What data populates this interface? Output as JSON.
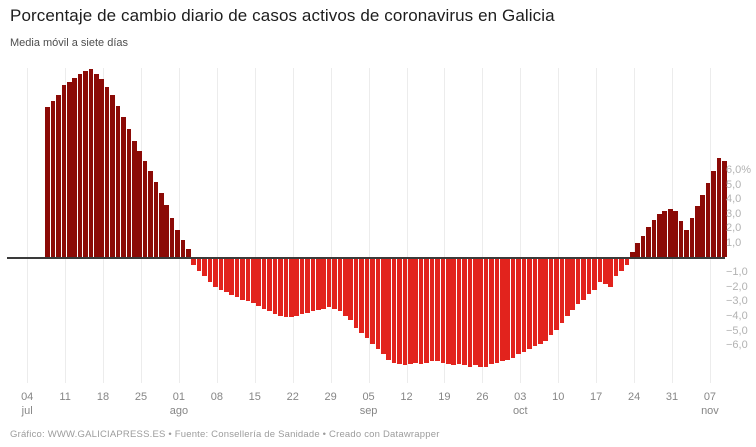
{
  "header": {
    "title": "Porcentaje de cambio diario de casos activos de coronavirus en Galicia",
    "subtitle": "Media móvil a siete días"
  },
  "footer": {
    "credit": "Gráfico: WWW.GALICIAPRESS.ES • Fuente: Consellería de Sanidade • Creado con Datawrapper"
  },
  "chart_data": {
    "type": "bar",
    "title": "Porcentaje de cambio diario de casos activos de coronavirus en Galicia",
    "subtitle": "Media móvil a siete días",
    "xlabel": "",
    "ylabel": "",
    "unit": "%",
    "frequency": "daily",
    "x_start_label": "08 jul",
    "x_end_label": "10 nov",
    "ylim": [
      -7.5,
      13
    ],
    "grid": "vertical-weekly",
    "legend": "none",
    "positive_color": "#8b0a06",
    "negative_color": "#e2231d",
    "values": [
      10.3,
      10.7,
      11.1,
      11.8,
      12.0,
      12.3,
      12.6,
      12.8,
      12.9,
      12.6,
      12.2,
      11.7,
      11.1,
      10.4,
      9.6,
      8.8,
      8.0,
      7.3,
      6.6,
      5.9,
      5.2,
      4.4,
      3.6,
      2.7,
      1.9,
      1.2,
      0.6,
      -0.4,
      -0.8,
      -1.2,
      -1.6,
      -1.9,
      -2.1,
      -2.3,
      -2.5,
      -2.6,
      -2.8,
      -2.9,
      -3.0,
      -3.2,
      -3.4,
      -3.6,
      -3.8,
      -3.9,
      -4.0,
      -4.0,
      -3.9,
      -3.8,
      -3.7,
      -3.6,
      -3.5,
      -3.4,
      -3.3,
      -3.4,
      -3.6,
      -3.9,
      -4.2,
      -4.7,
      -5.1,
      -5.4,
      -5.8,
      -6.2,
      -6.5,
      -6.9,
      -7.1,
      -7.2,
      -7.3,
      -7.2,
      -7.1,
      -7.2,
      -7.1,
      -7.0,
      -7.0,
      -7.1,
      -7.2,
      -7.3,
      -7.2,
      -7.3,
      -7.4,
      -7.3,
      -7.4,
      -7.4,
      -7.2,
      -7.1,
      -7.0,
      -6.9,
      -6.8,
      -6.5,
      -6.4,
      -6.2,
      -6.0,
      -5.8,
      -5.6,
      -5.2,
      -4.9,
      -4.4,
      -3.9,
      -3.5,
      -3.1,
      -2.8,
      -2.4,
      -2.1,
      -1.6,
      -1.7,
      -1.9,
      -1.2,
      -0.8,
      -0.4,
      0.4,
      1.0,
      1.5,
      2.1,
      2.6,
      3.0,
      3.2,
      3.3,
      3.2,
      2.5,
      1.9,
      2.7,
      3.5,
      4.3,
      5.1,
      5.9,
      6.8,
      6.6
    ],
    "x_ticks": [
      {
        "day": "04",
        "month": "jul"
      },
      {
        "day": "11",
        "month": ""
      },
      {
        "day": "18",
        "month": ""
      },
      {
        "day": "25",
        "month": ""
      },
      {
        "day": "01",
        "month": "ago"
      },
      {
        "day": "08",
        "month": ""
      },
      {
        "day": "15",
        "month": ""
      },
      {
        "day": "22",
        "month": ""
      },
      {
        "day": "29",
        "month": ""
      },
      {
        "day": "05",
        "month": "sep"
      },
      {
        "day": "12",
        "month": ""
      },
      {
        "day": "19",
        "month": ""
      },
      {
        "day": "26",
        "month": ""
      },
      {
        "day": "03",
        "month": "oct"
      },
      {
        "day": "10",
        "month": ""
      },
      {
        "day": "17",
        "month": ""
      },
      {
        "day": "24",
        "month": ""
      },
      {
        "day": "31",
        "month": ""
      },
      {
        "day": "07",
        "month": "nov"
      }
    ],
    "y_ticks": [
      {
        "label": "6,0%",
        "value": 6
      },
      {
        "label": "5,0",
        "value": 5
      },
      {
        "label": "4,0",
        "value": 4
      },
      {
        "label": "3,0",
        "value": 3
      },
      {
        "label": "2,0",
        "value": 2
      },
      {
        "label": "1,0",
        "value": 1
      },
      {
        "label": "−1,0",
        "value": -1
      },
      {
        "label": "−2,0",
        "value": -2
      },
      {
        "label": "−3,0",
        "value": -3
      },
      {
        "label": "−4,0",
        "value": -4
      },
      {
        "label": "−5,0",
        "value": -5
      },
      {
        "label": "−6,0",
        "value": -6
      }
    ]
  }
}
